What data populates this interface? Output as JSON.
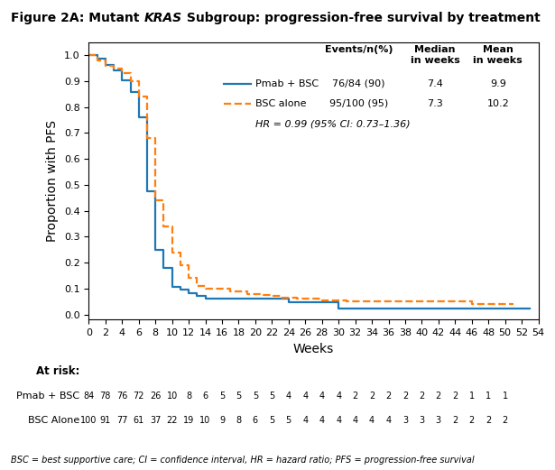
{
  "chart_data": {
    "type": "step",
    "title": "Figure 2A: Mutant KRAS Subgroup: progression-free survival by treatment",
    "title_italic": "KRAS",
    "x_label": "Weeks",
    "y_label": "Proportion with PFS",
    "xlim": [
      0,
      54
    ],
    "ylim": [
      -0.02,
      1.05
    ],
    "xticks": [
      0,
      2,
      4,
      6,
      8,
      10,
      12,
      14,
      16,
      18,
      20,
      22,
      24,
      26,
      28,
      30,
      32,
      34,
      36,
      38,
      40,
      42,
      44,
      46,
      48,
      50,
      52,
      54
    ],
    "yticks": [
      0.0,
      0.1,
      0.2,
      0.3,
      0.4,
      0.5,
      0.6,
      0.7,
      0.8,
      0.9,
      1.0
    ],
    "series": [
      {
        "name": "Pmab + BSC",
        "line_style": "solid",
        "x": [
          0,
          1,
          2,
          2,
          3,
          3,
          4,
          4,
          4,
          5,
          5,
          5,
          6,
          6,
          6,
          6,
          7,
          7,
          7,
          7,
          7,
          7,
          8,
          8,
          8,
          8,
          8,
          9,
          9,
          9,
          10,
          10,
          10,
          11,
          11,
          12,
          12,
          13,
          13,
          14,
          14,
          15,
          16,
          17,
          18,
          19,
          20,
          21,
          22,
          23,
          24,
          25,
          26,
          27,
          28,
          29,
          30,
          31,
          32,
          33,
          34,
          35,
          36,
          37,
          38,
          42,
          43,
          44,
          50,
          51,
          52,
          53
        ],
        "values": [
          1.0,
          0.9881,
          0.9762,
          0.9643,
          0.9524,
          0.9405,
          0.9286,
          0.9167,
          0.9048,
          0.8929,
          0.881,
          0.8571,
          0.8333,
          0.8095,
          0.7857,
          0.7619,
          0.5952,
          0.5714,
          0.5476,
          0.5238,
          0.5,
          0.4762,
          0.3452,
          0.3214,
          0.2976,
          0.2738,
          0.25,
          0.2262,
          0.2024,
          0.1786,
          0.1548,
          0.131,
          0.1071,
          0.1071,
          0.0952,
          0.0833,
          0.0833,
          0.0714,
          0.0714,
          0.0595,
          0.0595,
          0.0595,
          0.0595,
          0.0595,
          0.0595,
          0.0595,
          0.0595,
          0.0595,
          0.0595,
          0.0595,
          0.0476,
          0.0476,
          0.0476,
          0.0476,
          0.0476,
          0.0476,
          0.0238,
          0.0238,
          0.0238,
          0.0238,
          0.0238,
          0.0238,
          0.0238,
          0.0238,
          0.0238,
          0.0238,
          0.0238,
          0.0238,
          0.0238,
          0.0238,
          0.0238,
          0.0238
        ]
      },
      {
        "name": "BSC alone",
        "line_style": "dashed",
        "x": [
          0,
          1,
          2,
          3,
          4,
          4,
          5,
          5,
          6,
          6,
          6,
          7,
          7,
          7,
          8,
          8,
          8,
          8,
          9,
          9,
          10,
          10,
          11,
          11,
          12,
          12,
          13,
          13,
          14,
          15,
          16,
          17,
          18,
          19,
          20,
          21,
          22,
          23,
          24,
          25,
          26,
          27,
          28,
          29,
          30,
          31,
          32,
          33,
          34,
          35,
          36,
          37,
          38,
          39,
          40,
          41,
          42,
          43,
          44,
          45,
          46,
          47,
          48,
          49,
          50,
          51
        ],
        "values": [
          1.0,
          0.98,
          0.96,
          0.95,
          0.94,
          0.93,
          0.91,
          0.9,
          0.88,
          0.86,
          0.84,
          0.76,
          0.72,
          0.68,
          0.56,
          0.52,
          0.48,
          0.44,
          0.38,
          0.34,
          0.28,
          0.24,
          0.21,
          0.19,
          0.16,
          0.14,
          0.12,
          0.11,
          0.1,
          0.1,
          0.1,
          0.09,
          0.09,
          0.08,
          0.08,
          0.075,
          0.07,
          0.065,
          0.065,
          0.06,
          0.06,
          0.06,
          0.055,
          0.055,
          0.055,
          0.05,
          0.05,
          0.05,
          0.05,
          0.05,
          0.05,
          0.05,
          0.05,
          0.05,
          0.05,
          0.05,
          0.05,
          0.05,
          0.05,
          0.05,
          0.04,
          0.04,
          0.04,
          0.04,
          0.04,
          0.04
        ]
      }
    ],
    "legend_table": {
      "columns": [
        "Events/n(%)",
        "Median\nin weeks",
        "Mean\nin weeks"
      ],
      "rows": [
        [
          "76/84 (90)",
          "7.4",
          "9.9"
        ],
        [
          "95/100 (95)",
          "7.3",
          "10.2"
        ]
      ]
    },
    "annotation": "HR = 0.99 (95% CI: 0.73–1.36)",
    "at_risk": {
      "label": "At risk:",
      "x": [
        0,
        2,
        4,
        6,
        8,
        10,
        12,
        14,
        16,
        18,
        20,
        22,
        24,
        26,
        28,
        30,
        32,
        34,
        36,
        38,
        40,
        42,
        44,
        46,
        48,
        50
      ],
      "rows": [
        {
          "name": "Pmab + BSC",
          "values": [
            84,
            78,
            76,
            72,
            26,
            10,
            8,
            6,
            5,
            5,
            5,
            5,
            4,
            4,
            4,
            4,
            2,
            2,
            2,
            2,
            2,
            2,
            2,
            1,
            1,
            1
          ]
        },
        {
          "name": "BSC Alone",
          "values": [
            100,
            91,
            77,
            61,
            37,
            22,
            19,
            10,
            9,
            8,
            6,
            5,
            5,
            4,
            4,
            4,
            4,
            4,
            4,
            3,
            3,
            3,
            2,
            2,
            2,
            2
          ]
        }
      ]
    },
    "footnote": "BSC = best supportive care; CI = confidence interval, HR = hazard ratio; PFS = progression-free survival"
  }
}
